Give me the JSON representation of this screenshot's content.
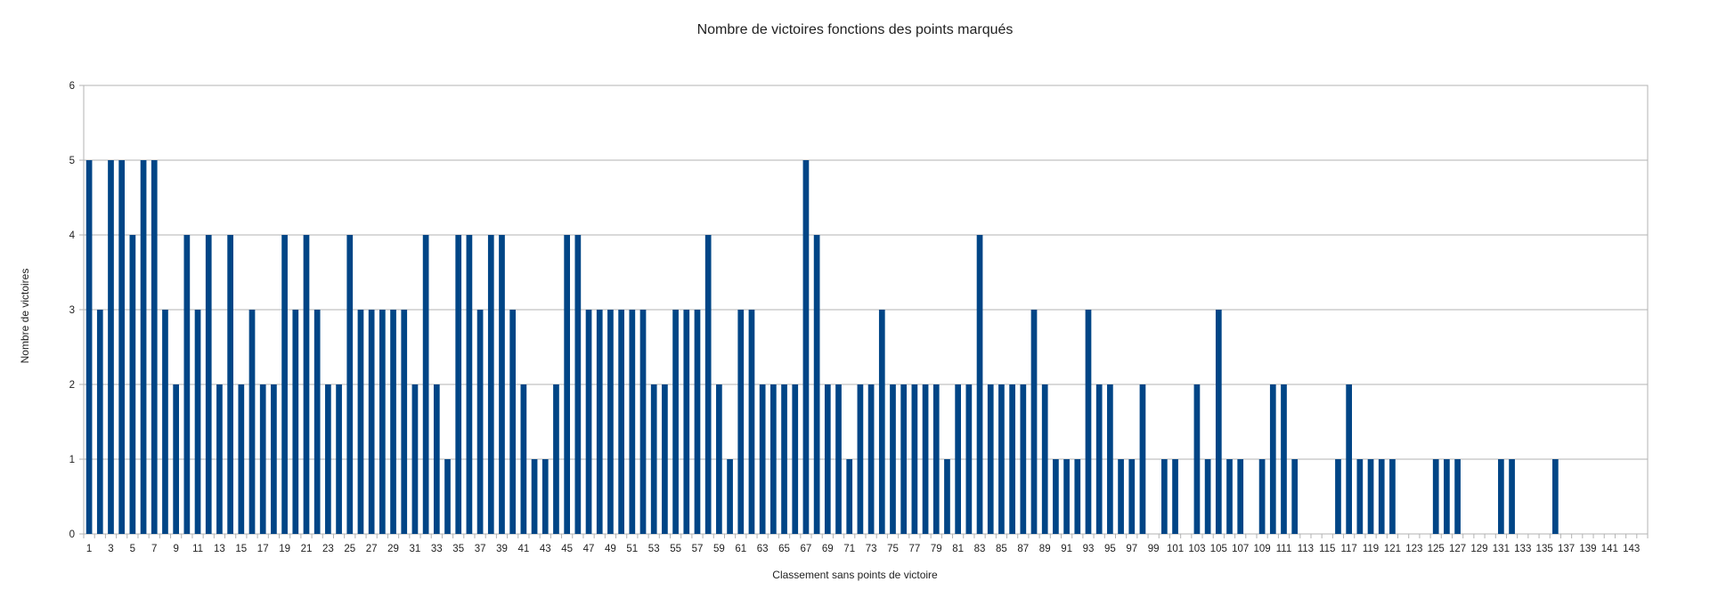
{
  "chart_data": {
    "type": "bar",
    "title": "Nombre de victoires fonctions des points marqués",
    "xlabel": "Classement sans points de victoire",
    "ylabel": "Nombre de victoires",
    "ylim": [
      0,
      6
    ],
    "yticks": [
      0,
      1,
      2,
      3,
      4,
      5,
      6
    ],
    "grid": true,
    "legend": "none",
    "bar_color": "#004586",
    "categories": [
      1,
      2,
      3,
      4,
      5,
      6,
      7,
      8,
      9,
      10,
      11,
      12,
      13,
      14,
      15,
      16,
      17,
      18,
      19,
      20,
      21,
      22,
      23,
      24,
      25,
      26,
      27,
      28,
      29,
      30,
      31,
      32,
      33,
      34,
      35,
      36,
      37,
      38,
      39,
      40,
      41,
      42,
      43,
      44,
      45,
      46,
      47,
      48,
      49,
      50,
      51,
      52,
      53,
      54,
      55,
      56,
      57,
      58,
      59,
      60,
      61,
      62,
      63,
      64,
      65,
      66,
      67,
      68,
      69,
      70,
      71,
      72,
      73,
      74,
      75,
      76,
      77,
      78,
      79,
      80,
      81,
      82,
      83,
      84,
      85,
      86,
      87,
      88,
      89,
      90,
      91,
      92,
      93,
      94,
      95,
      96,
      97,
      98,
      99,
      100,
      101,
      102,
      103,
      104,
      105,
      106,
      107,
      108,
      109,
      110,
      111,
      112,
      113,
      114,
      115,
      116,
      117,
      118,
      119,
      120,
      121,
      122,
      123,
      124,
      125,
      126,
      127,
      128,
      129,
      130,
      131,
      132,
      133,
      134,
      135,
      136,
      137,
      138,
      139,
      140,
      141,
      142,
      143,
      144
    ],
    "values": [
      5,
      3,
      5,
      5,
      4,
      5,
      5,
      3,
      2,
      4,
      3,
      4,
      2,
      4,
      2,
      3,
      2,
      2,
      4,
      3,
      4,
      3,
      2,
      2,
      4,
      3,
      3,
      3,
      3,
      3,
      2,
      4,
      2,
      1,
      4,
      4,
      3,
      4,
      4,
      3,
      2,
      1,
      1,
      2,
      4,
      4,
      3,
      3,
      3,
      3,
      3,
      3,
      2,
      2,
      3,
      3,
      3,
      4,
      2,
      1,
      3,
      3,
      2,
      2,
      2,
      2,
      5,
      4,
      2,
      2,
      1,
      2,
      2,
      3,
      2,
      2,
      2,
      2,
      2,
      1,
      2,
      2,
      4,
      2,
      2,
      2,
      2,
      3,
      2,
      1,
      1,
      1,
      3,
      2,
      2,
      1,
      1,
      2,
      0,
      1,
      1,
      0,
      2,
      1,
      3,
      1,
      1,
      0,
      1,
      2,
      2,
      1,
      0,
      0,
      0,
      1,
      2,
      1,
      1,
      1,
      1,
      0,
      0,
      0,
      1,
      1,
      1,
      0,
      0,
      0,
      1,
      1,
      0,
      0,
      0,
      1,
      0,
      0,
      0,
      0,
      0,
      0,
      0,
      0
    ],
    "xticks_shown": [
      1,
      3,
      5,
      7,
      9,
      11,
      13,
      15,
      17,
      19,
      21,
      23,
      25,
      27,
      29,
      31,
      33,
      35,
      37,
      39,
      41,
      43,
      45,
      47,
      49,
      51,
      53,
      55,
      57,
      59,
      61,
      63,
      65,
      67,
      69,
      71,
      73,
      75,
      77,
      79,
      81,
      83,
      85,
      87,
      89,
      91,
      93,
      95,
      97,
      99,
      101,
      103,
      105,
      107,
      109,
      111,
      113,
      115,
      117,
      119,
      121,
      123,
      125,
      127,
      129,
      131,
      133,
      135,
      137,
      139,
      141,
      143
    ]
  }
}
